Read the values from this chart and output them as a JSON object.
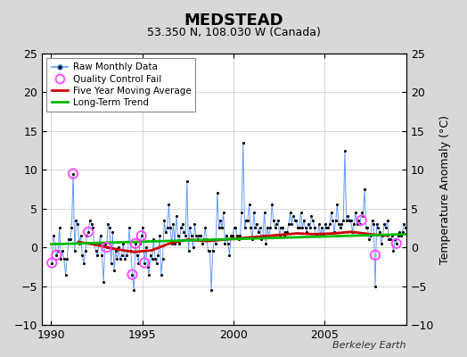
{
  "title": "MEDSTEAD",
  "subtitle": "53.350 N, 108.030 W (Canada)",
  "ylabel": "Temperature Anomaly (°C)",
  "credit": "Berkeley Earth",
  "xlim": [
    1989.5,
    2009.5
  ],
  "ylim": [
    -10,
    25
  ],
  "yticks": [
    -10,
    -5,
    0,
    5,
    10,
    15,
    20,
    25
  ],
  "xticks": [
    1990,
    1995,
    2000,
    2005
  ],
  "fig_bg_color": "#d8d8d8",
  "plot_bg_color": "#ffffff",
  "raw_line_color": "#6699ff",
  "raw_marker_color": "#000000",
  "moving_avg_color": "#cc0000",
  "trend_color": "#00bb00",
  "qc_fail_color": "#ff44ff",
  "raw_x": [
    1990.042,
    1990.125,
    1990.208,
    1990.292,
    1990.375,
    1990.458,
    1990.542,
    1990.625,
    1990.708,
    1990.792,
    1990.875,
    1990.958,
    1991.042,
    1991.125,
    1991.208,
    1991.292,
    1991.375,
    1991.458,
    1991.542,
    1991.625,
    1991.708,
    1991.792,
    1991.875,
    1991.958,
    1992.042,
    1992.125,
    1992.208,
    1992.292,
    1992.375,
    1992.458,
    1992.542,
    1992.625,
    1992.708,
    1992.792,
    1992.875,
    1992.958,
    1993.042,
    1993.125,
    1993.208,
    1993.292,
    1993.375,
    1993.458,
    1993.542,
    1993.625,
    1993.708,
    1993.792,
    1993.875,
    1993.958,
    1994.042,
    1994.125,
    1994.208,
    1994.292,
    1994.375,
    1994.458,
    1994.542,
    1994.625,
    1994.708,
    1994.792,
    1994.875,
    1994.958,
    1995.042,
    1995.125,
    1995.208,
    1995.292,
    1995.375,
    1995.458,
    1995.542,
    1995.625,
    1995.708,
    1995.792,
    1995.875,
    1995.958,
    1996.042,
    1996.125,
    1996.208,
    1996.292,
    1996.375,
    1996.458,
    1996.542,
    1996.625,
    1996.708,
    1996.792,
    1996.875,
    1996.958,
    1997.042,
    1997.125,
    1997.208,
    1997.292,
    1997.375,
    1997.458,
    1997.542,
    1997.625,
    1997.708,
    1997.792,
    1997.875,
    1997.958,
    1998.042,
    1998.125,
    1998.208,
    1998.292,
    1998.375,
    1998.458,
    1998.542,
    1998.625,
    1998.708,
    1998.792,
    1998.875,
    1998.958,
    1999.042,
    1999.125,
    1999.208,
    1999.292,
    1999.375,
    1999.458,
    1999.542,
    1999.625,
    1999.708,
    1999.792,
    1999.875,
    1999.958,
    2000.042,
    2000.125,
    2000.208,
    2000.292,
    2000.375,
    2000.458,
    2000.542,
    2000.625,
    2000.708,
    2000.792,
    2000.875,
    2000.958,
    2001.042,
    2001.125,
    2001.208,
    2001.292,
    2001.375,
    2001.458,
    2001.542,
    2001.625,
    2001.708,
    2001.792,
    2001.875,
    2001.958,
    2002.042,
    2002.125,
    2002.208,
    2002.292,
    2002.375,
    2002.458,
    2002.542,
    2002.625,
    2002.708,
    2002.792,
    2002.875,
    2002.958,
    2003.042,
    2003.125,
    2003.208,
    2003.292,
    2003.375,
    2003.458,
    2003.542,
    2003.625,
    2003.708,
    2003.792,
    2003.875,
    2003.958,
    2004.042,
    2004.125,
    2004.208,
    2004.292,
    2004.375,
    2004.458,
    2004.542,
    2004.625,
    2004.708,
    2004.792,
    2004.875,
    2004.958,
    2005.042,
    2005.125,
    2005.208,
    2005.292,
    2005.375,
    2005.458,
    2005.542,
    2005.625,
    2005.708,
    2005.792,
    2005.875,
    2005.958,
    2006.042,
    2006.125,
    2006.208,
    2006.292,
    2006.375,
    2006.458,
    2006.542,
    2006.625,
    2006.708,
    2006.792,
    2006.875,
    2006.958,
    2007.042,
    2007.125,
    2007.208,
    2007.292,
    2007.375,
    2007.458,
    2007.542,
    2007.625,
    2007.708,
    2007.792,
    2007.875,
    2007.958,
    2008.042,
    2008.125,
    2008.208,
    2008.292,
    2008.375,
    2008.458,
    2008.542,
    2008.625,
    2008.708,
    2008.792,
    2008.875,
    2008.958,
    2009.042,
    2009.125,
    2009.208,
    2009.292,
    2009.375,
    2009.458
  ],
  "raw_y": [
    -2.0,
    1.5,
    0.5,
    -1.0,
    -0.5,
    2.5,
    -1.5,
    -0.5,
    -1.5,
    -3.5,
    -1.5,
    1.0,
    1.0,
    2.5,
    9.5,
    -0.5,
    3.5,
    3.0,
    0.5,
    1.5,
    -1.0,
    -2.0,
    -0.5,
    1.5,
    2.0,
    3.5,
    3.0,
    2.5,
    0.5,
    -0.5,
    -1.0,
    0.5,
    1.5,
    -1.0,
    -4.5,
    0.5,
    0.0,
    3.0,
    2.5,
    -2.0,
    2.0,
    -3.0,
    -0.5,
    -1.5,
    0.0,
    -1.5,
    -1.0,
    0.5,
    -1.5,
    -1.0,
    -0.5,
    2.5,
    -0.5,
    -3.5,
    -5.5,
    0.5,
    -1.0,
    -2.0,
    0.5,
    1.5,
    2.5,
    -2.0,
    0.0,
    -2.5,
    -3.5,
    -1.0,
    -1.5,
    1.0,
    -1.5,
    -2.0,
    -1.0,
    1.5,
    -3.5,
    -1.5,
    3.5,
    2.0,
    2.5,
    5.5,
    2.5,
    0.5,
    3.0,
    0.5,
    4.0,
    1.5,
    0.5,
    2.5,
    3.0,
    2.0,
    1.5,
    8.5,
    -0.5,
    2.5,
    1.5,
    0.0,
    3.0,
    1.5,
    1.0,
    1.5,
    1.5,
    0.5,
    1.0,
    2.5,
    1.0,
    -0.5,
    -0.5,
    -5.5,
    -0.5,
    1.0,
    0.5,
    7.0,
    2.5,
    3.5,
    2.5,
    4.5,
    0.5,
    1.5,
    0.5,
    -1.0,
    1.5,
    1.5,
    2.5,
    2.5,
    1.5,
    1.0,
    1.5,
    4.5,
    13.5,
    2.5,
    3.5,
    3.5,
    5.5,
    2.5,
    1.0,
    4.5,
    2.5,
    3.0,
    2.0,
    2.5,
    1.0,
    1.5,
    4.5,
    0.5,
    2.5,
    1.5,
    2.5,
    5.5,
    3.5,
    2.5,
    3.0,
    3.5,
    1.5,
    2.5,
    2.5,
    1.5,
    2.0,
    2.0,
    3.0,
    4.5,
    3.0,
    4.0,
    3.5,
    3.5,
    2.5,
    2.5,
    4.5,
    2.5,
    3.5,
    2.5,
    2.0,
    3.0,
    2.5,
    4.0,
    3.5,
    2.5,
    1.5,
    1.5,
    3.0,
    1.5,
    2.5,
    1.5,
    3.0,
    2.5,
    2.5,
    3.0,
    4.5,
    3.5,
    2.0,
    3.5,
    5.5,
    3.0,
    2.5,
    3.0,
    3.5,
    12.5,
    3.5,
    4.0,
    3.5,
    3.5,
    2.0,
    3.0,
    4.5,
    3.0,
    3.5,
    3.0,
    4.5,
    4.0,
    7.5,
    2.5,
    2.5,
    1.0,
    1.5,
    3.5,
    3.0,
    -5.0,
    3.0,
    2.5,
    2.0,
    0.5,
    1.5,
    3.0,
    2.5,
    3.5,
    1.0,
    1.0,
    1.5,
    -0.5,
    1.0,
    0.5,
    1.5,
    2.0,
    1.5,
    2.0,
    3.0,
    2.5
  ],
  "qc_x": [
    1991.208,
    1990.042,
    1990.292,
    1992.042,
    1993.042,
    1994.458,
    1994.625,
    1994.958,
    1995.125,
    2007.042,
    2007.792,
    2008.958
  ],
  "qc_y": [
    9.5,
    -2.0,
    -1.0,
    2.0,
    0.0,
    -3.5,
    0.5,
    1.5,
    -2.0,
    3.5,
    -1.0,
    0.5
  ],
  "ma_x": [
    1991.5,
    1992.5,
    1993.5,
    1994.5,
    1995.5,
    1996.5,
    1997.5,
    1998.5,
    1999.5,
    2000.5,
    2001.5,
    2002.5,
    2003.5,
    2004.5,
    2005.5,
    2006.5,
    2007.5,
    2008.5
  ],
  "ma_y": [
    0.7,
    0.3,
    -0.2,
    -0.6,
    -0.4,
    0.5,
    1.0,
    0.8,
    1.0,
    1.2,
    1.4,
    1.6,
    1.8,
    1.7,
    1.8,
    2.0,
    1.7,
    1.5
  ],
  "trend_x": [
    1990.0,
    2009.5
  ],
  "trend_y": [
    0.4,
    1.7
  ]
}
